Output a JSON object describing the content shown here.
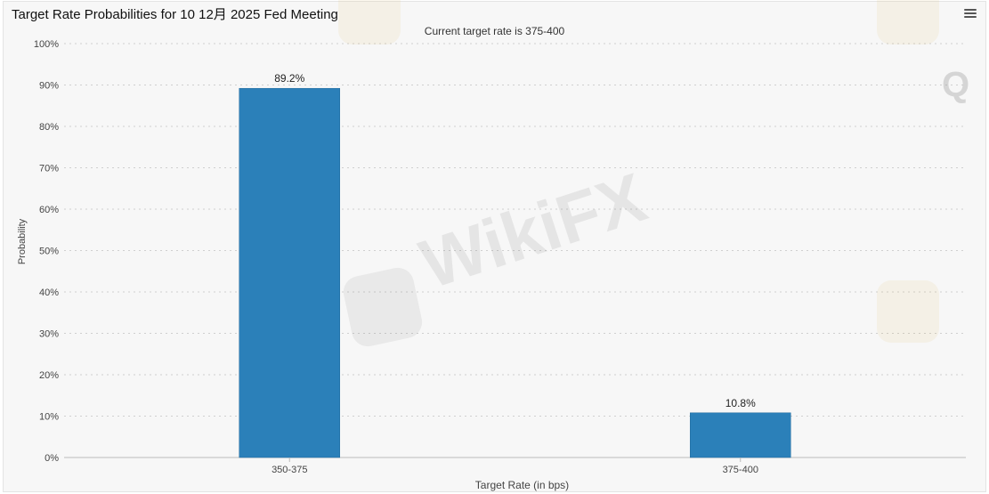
{
  "chart_data": {
    "type": "bar",
    "title": "Target Rate Probabilities for 10 12月 2025 Fed Meeting",
    "subtitle": "Current target rate is 375-400",
    "categories": [
      "350-375",
      "375-400"
    ],
    "values": [
      89.2,
      10.8
    ],
    "data_labels": [
      "89.2%",
      "10.8%"
    ],
    "xlabel": "Target Rate (in bps)",
    "ylabel": "Probability",
    "ylim": [
      0,
      100
    ],
    "yticks": [
      0,
      10,
      20,
      30,
      40,
      50,
      60,
      70,
      80,
      90,
      100
    ],
    "ytick_format": "{v}%",
    "grid": true,
    "legend": "none",
    "bar_color": "#2b80b9"
  },
  "toolbar": {
    "menu_icon": "hamburger-menu-icon"
  },
  "watermark": {
    "text": "WikiFX",
    "corner_glyph": "Q"
  }
}
